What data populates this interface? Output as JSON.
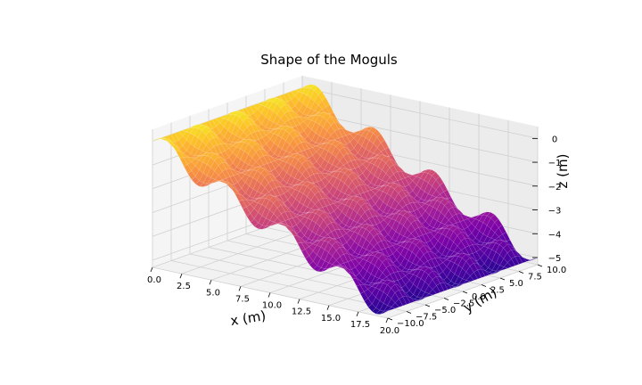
{
  "chart_data": {
    "type": "surface3d",
    "title": "Shape of the Moguls",
    "xlabel": "x (m)",
    "ylabel": "y (m)",
    "zlabel": "z (m)",
    "xlim": [
      0,
      20
    ],
    "ylim": [
      -10,
      10
    ],
    "zlim": [
      -5.3,
      0.5
    ],
    "x_ticks": [
      "0.0",
      "2.5",
      "5.0",
      "7.5",
      "10.0",
      "12.5",
      "15.0",
      "17.5",
      "20.0"
    ],
    "y_ticks": [
      "−10.0",
      "−7.5",
      "−5.0",
      "−2.5",
      "0.0",
      "2.5",
      "5.0",
      "7.5",
      "10.0"
    ],
    "z_ticks": [
      "−5",
      "−4",
      "−3",
      "−2",
      "−1",
      "0"
    ],
    "x_tick_values": [
      0,
      2.5,
      5,
      7.5,
      10,
      12.5,
      15,
      17.5,
      20
    ],
    "y_tick_values": [
      -10,
      -7.5,
      -5,
      -2.5,
      0,
      2.5,
      5,
      7.5,
      10
    ],
    "z_tick_values": [
      -5,
      -4,
      -3,
      -2,
      -1,
      0
    ],
    "surface": {
      "function": "z = -0.25*x + 0.5*sin(2*pi*x/5)*cos(2*pi*y/5) approx.",
      "x_range": [
        0,
        20
      ],
      "y_range": [
        -10,
        10
      ],
      "colormap": "plasma",
      "grid": true
    }
  }
}
